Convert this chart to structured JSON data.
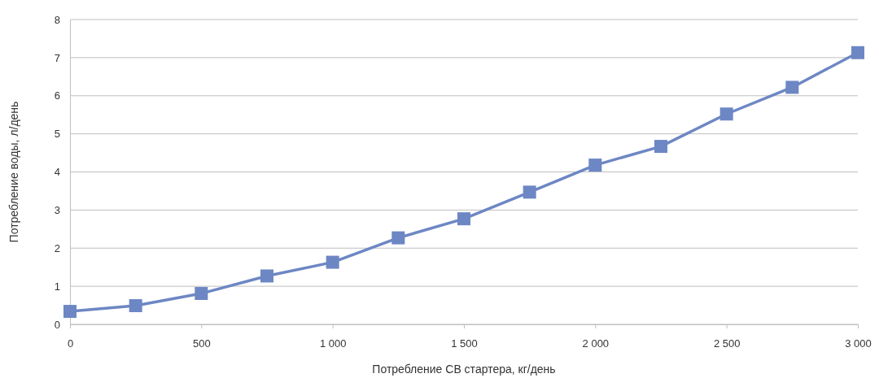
{
  "chart_data": {
    "type": "line",
    "xlabel": "Потребление СВ стартера, кг/день",
    "ylabel": "Потребление воды, л/день",
    "x": [
      0,
      250,
      500,
      750,
      1000,
      1250,
      1500,
      1750,
      2000,
      2250,
      2500,
      2750,
      3000
    ],
    "series": [
      {
        "color": "#6d87c4",
        "values": [
          0.34,
          0.49,
          0.81,
          1.27,
          1.63,
          2.27,
          2.77,
          3.47,
          4.18,
          4.67,
          5.52,
          6.22,
          7.13
        ]
      }
    ],
    "xlim": [
      0,
      3000
    ],
    "xticks": [
      0,
      {
        "value": 500,
        "label": "500"
      },
      {
        "value": 1000,
        "label": "1 000"
      },
      {
        "value": 1500,
        "label": "1 500"
      },
      {
        "value": 2000,
        "label": "2 000"
      },
      {
        "value": 2500,
        "label": "2 500"
      },
      {
        "value": 3000,
        "label": "3 000"
      }
    ],
    "ylim": [
      0,
      8
    ],
    "yticks": [
      0,
      1,
      2,
      3,
      4,
      5,
      6,
      7,
      8
    ],
    "grid": "y",
    "marker": "square",
    "line_style": "solid"
  }
}
